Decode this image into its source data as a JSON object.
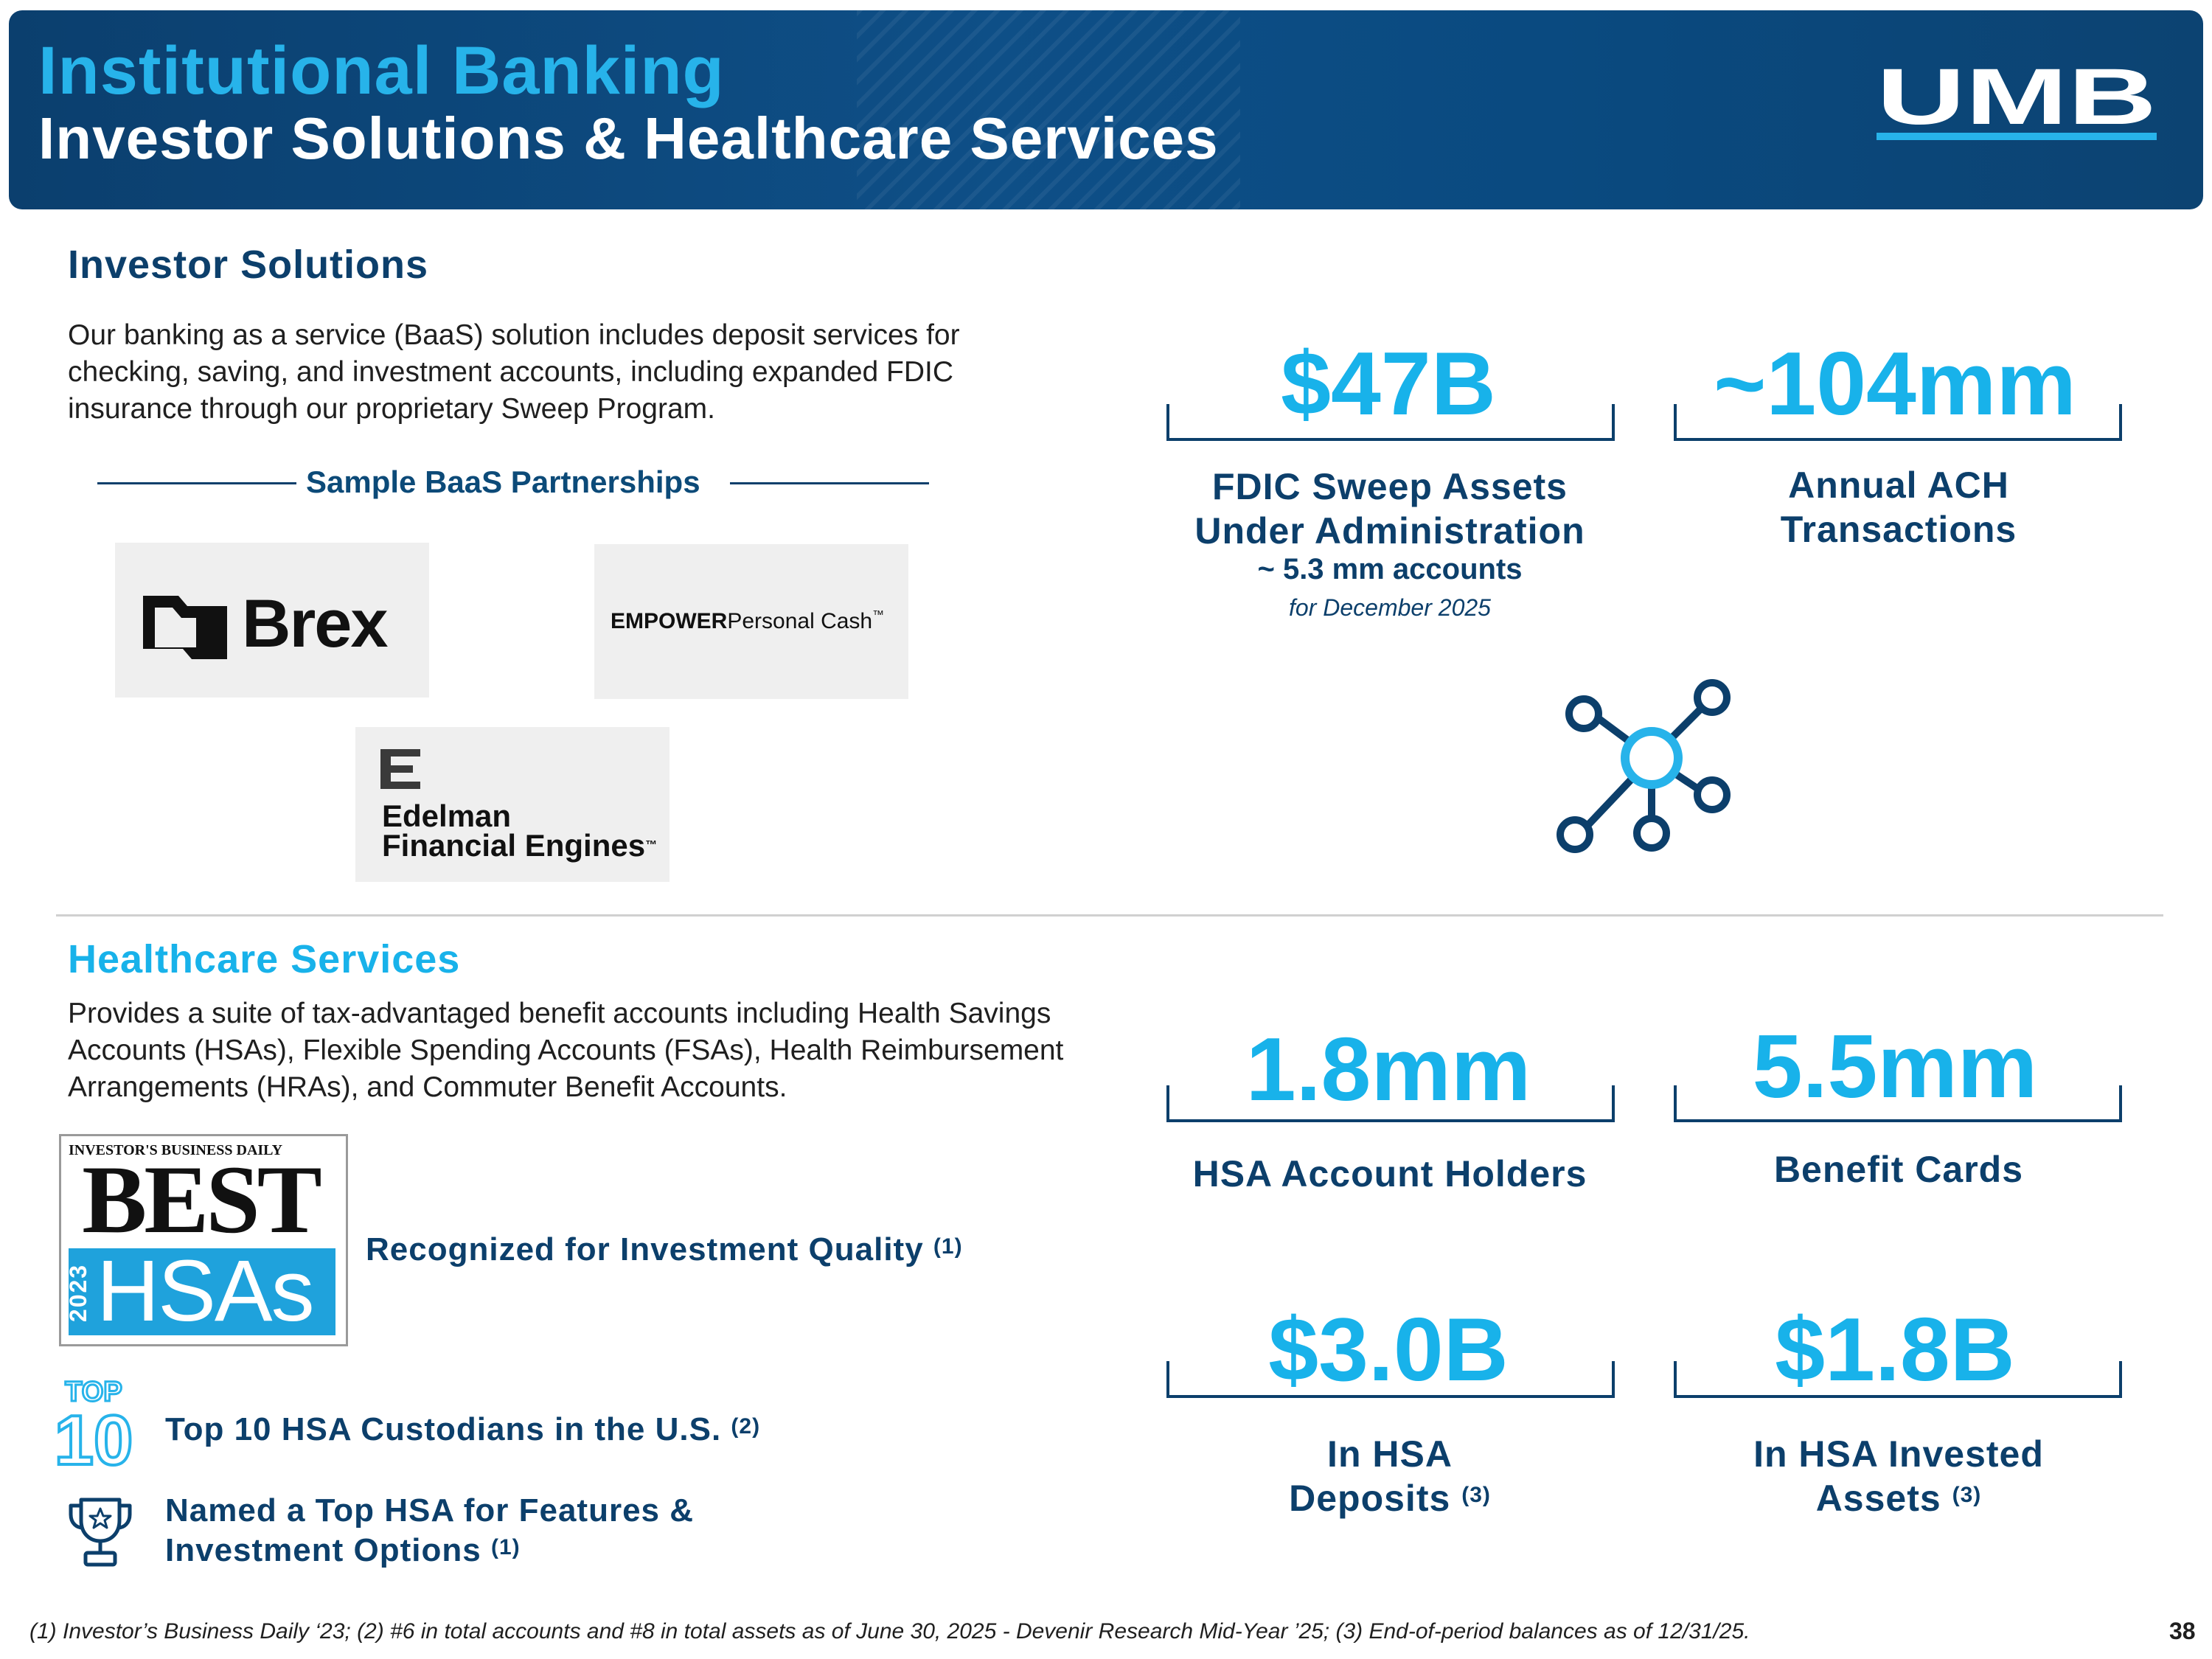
{
  "header": {
    "title_line1": "Institutional Banking",
    "title_line2": "Investor Solutions & Healthcare Services",
    "logo_text": "UMB"
  },
  "investor": {
    "title": "Investor Solutions",
    "description": "Our banking as a service (BaaS) solution includes deposit services for checking, saving, and investment accounts, including expanded FDIC insurance through our proprietary Sweep Program.",
    "partnerships_label": "Sample BaaS Partnerships",
    "partners": [
      {
        "name": "Brex"
      },
      {
        "name_bold": "EMPOWER",
        "name_rest": "Personal Cash",
        "tm": "™"
      },
      {
        "line1": "Edelman",
        "line2": "Financial Engines",
        "tm": "™"
      }
    ],
    "stats": [
      {
        "value": "$47B",
        "label_line1": "FDIC Sweep Assets",
        "label_line2": "Under Administration",
        "sub": "~ 5.3 mm accounts",
        "note": "for December 2025"
      },
      {
        "value": "~104mm",
        "label_line1": "Annual ACH",
        "label_line2": "Transactions"
      }
    ],
    "network_icon": "network-hub-icon"
  },
  "healthcare": {
    "title": "Healthcare Services",
    "description": "Provides a suite of tax-advantaged benefit accounts including Health Savings Accounts (HSAs), Flexible Spending Accounts (FSAs), Health Reimbursement Arrangements (HRAs), and Commuter Benefit Accounts.",
    "badge": {
      "publisher": "INVESTOR'S BUSINESS DAILY",
      "best": "BEST",
      "year": "2023",
      "hsas": "HSAs"
    },
    "recognized": {
      "text": "Recognized for Investment Quality",
      "fn": "(1)"
    },
    "top10": {
      "icon_top": "TOP",
      "icon_num": "10",
      "text": "Top 10 HSA Custodians in the U.S.",
      "fn": "(2)"
    },
    "named": {
      "line1": "Named a Top HSA for Features &",
      "line2": "Investment Options",
      "fn": "(1)"
    },
    "stats": [
      {
        "value": "1.8mm",
        "label": "HSA Account Holders"
      },
      {
        "value": "5.5mm",
        "label": "Benefit Cards"
      },
      {
        "value": "$3.0B",
        "label_line1": "In HSA",
        "label_line2": "Deposits",
        "fn": "(3)"
      },
      {
        "value": "$1.8B",
        "label_line1": "In HSA Invested",
        "label_line2": "Assets",
        "fn": "(3)"
      }
    ]
  },
  "footer": {
    "footnote": "(1) Investor’s Business Daily ‘23; (2) #6 in total accounts and #8 in total assets as of June 30, 2025 - Devenir Research Mid-Year ’25; (3) End-of-period balances as of 12/31/25.",
    "page_number": "38"
  },
  "colors": {
    "navy": "#0c3f6b",
    "cyan": "#18b2ea",
    "header_bg": "#0e4f87"
  }
}
